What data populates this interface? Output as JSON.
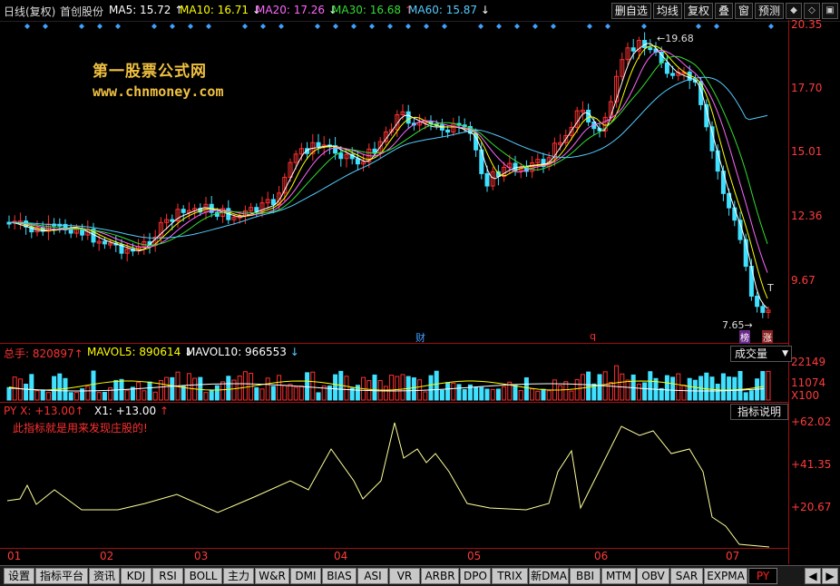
{
  "header": {
    "title": "日线(复权)",
    "stock_name": "首创股份",
    "ma": [
      {
        "label": "MA5: 15.72",
        "arrow": "↑",
        "color": "#ffffff"
      },
      {
        "label": "MA10: 16.71",
        "arrow": "↓",
        "color": "#ffff00"
      },
      {
        "label": "MA20: 17.26",
        "arrow": "↓",
        "color": "#ff66ff"
      },
      {
        "label": "MA30: 16.68",
        "arrow": "↑",
        "color": "#33dd33"
      },
      {
        "label": "MA60: 15.87",
        "arrow": "↓",
        "color": "#55ccff"
      }
    ],
    "buttons": [
      "删自选",
      "均线",
      "复权",
      "叠",
      "窗",
      "预测"
    ]
  },
  "watermark": {
    "line1": "第一股票公式网",
    "line2": "www.chnmoney.com"
  },
  "price_axis": [
    "20.35",
    "17.70",
    "15.01",
    "12.36",
    "9.67"
  ],
  "annotations": {
    "high": "19.68",
    "low": "7.65",
    "cai": "财",
    "q": "q",
    "t": "T",
    "bang": "榜",
    "zhang": "涨"
  },
  "volume": {
    "title": "总手: 820897",
    "title_arrow": "↑",
    "mavol5": "MAVOL5: 890614",
    "mavol5_arrow": "↓",
    "mavol10": "MAVOL10: 966553",
    "mavol10_arrow": "↓",
    "axis": [
      "22149",
      "11074",
      "X100"
    ],
    "selector": "成交量"
  },
  "indicator": {
    "py": "PY X: +13.00",
    "py_arrow": "↑",
    "x1": "X1: +13.00",
    "x1_arrow": "↑",
    "note": "此指标就是用来发现庄股的!",
    "axis": [
      "+62.02",
      "+41.35",
      "+20.67"
    ],
    "button": "指标说明"
  },
  "x_axis": [
    "01",
    "02",
    "03",
    "04",
    "05",
    "06",
    "07"
  ],
  "tabs": [
    "设置",
    "指标平台",
    "资讯",
    "KDJ",
    "RSI",
    "BOLL",
    "主力",
    "W&R",
    "DMI",
    "BIAS",
    "ASI",
    "VR",
    "ARBR",
    "DPO",
    "TRIX",
    "新DMA",
    "BBI",
    "MTM",
    "OBV",
    "SAR",
    "EXPMA",
    "PY"
  ],
  "active_tab": "PY",
  "colors": {
    "up": "#ff3030",
    "down": "#40e0ff",
    "axis": "#a01010",
    "py_line": "#ffff99"
  }
}
